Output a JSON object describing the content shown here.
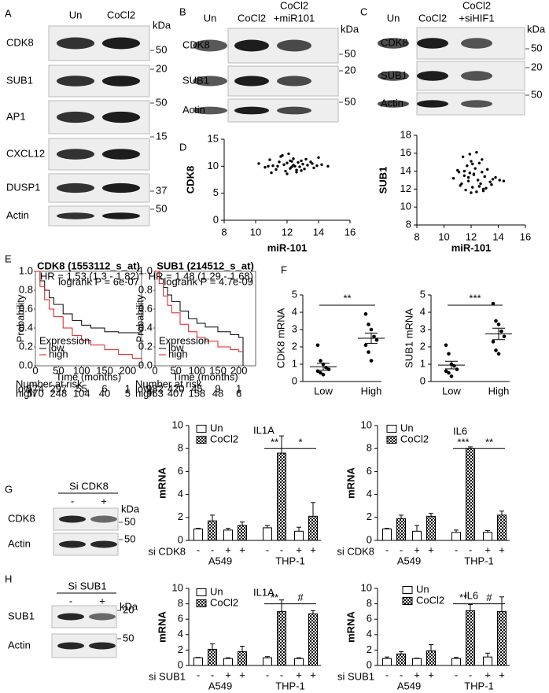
{
  "panel_A": {
    "label": "A",
    "lanes": [
      "Un",
      "CoCl2"
    ],
    "unit": "kDa",
    "rows": [
      {
        "name": "CDK8",
        "kda": 50
      },
      {
        "name": "SUB1",
        "kda": 20
      },
      {
        "name": "AP1",
        "kda": 50
      },
      {
        "name": "CXCL12",
        "kda": 15
      },
      {
        "name": "DUSP1",
        "kda": 37
      },
      {
        "name": "Actin",
        "kda": 50
      }
    ]
  },
  "panel_B": {
    "label": "B",
    "lanes": [
      [
        "Un"
      ],
      [
        "CoCl2"
      ],
      [
        "CoCl2",
        "+miR101"
      ]
    ],
    "unit": "kDa",
    "rows": [
      {
        "name": "CDK8",
        "kda": 50
      },
      {
        "name": "SUB1",
        "kda": 20
      },
      {
        "name": "Actin",
        "kda": 50
      }
    ]
  },
  "panel_C": {
    "label": "C",
    "lanes": [
      [
        "Un"
      ],
      [
        "CoCl2"
      ],
      [
        "CoCl2",
        "+siHIF1"
      ]
    ],
    "unit": "kDa",
    "rows": [
      {
        "name": "CDK8",
        "kda": 50
      },
      {
        "name": "SUB1",
        "kda": 20
      },
      {
        "name": "Actin",
        "kda": 50
      }
    ]
  },
  "panel_D": {
    "label": "D",
    "charts": [
      {
        "type": "scatter",
        "ylabel": "CDK8",
        "xlabel": "miR-101",
        "xlim": [
          8,
          16
        ],
        "xticks": [
          8,
          10,
          12,
          14,
          16
        ],
        "ylim": [
          0,
          15
        ],
        "yticks": [
          0,
          5,
          10,
          15
        ],
        "x": [
          10.2,
          10.6,
          10.9,
          11.1,
          11.3,
          11.5,
          11.6,
          11.8,
          11.9,
          12.0,
          12.1,
          12.2,
          12.3,
          12.4,
          12.5,
          12.6,
          12.7,
          12.8,
          12.9,
          13.0,
          13.1,
          13.3,
          13.5,
          13.7,
          13.9,
          14.2,
          14.6,
          11.0,
          11.7,
          12.2,
          12.6,
          13.2,
          12.0,
          12.4,
          11.4,
          12.9,
          13.6,
          10.8,
          14.0,
          12.3
        ],
        "values": [
          10.5,
          9.8,
          11.2,
          10.1,
          9.4,
          10.8,
          11.8,
          10.3,
          9.1,
          10.6,
          12.3,
          9.6,
          10.9,
          11.4,
          10.0,
          8.9,
          10.7,
          9.9,
          11.0,
          10.4,
          9.5,
          10.2,
          10.8,
          9.7,
          10.1,
          10.3,
          10.0,
          8.8,
          12.0,
          11.0,
          9.3,
          11.3,
          8.6,
          10.2,
          10.0,
          9.2,
          10.5,
          10.0,
          11.6,
          9.9
        ]
      },
      {
        "type": "scatter",
        "ylabel": "SUB1",
        "xlabel": "miR-101",
        "xlim": [
          8,
          16
        ],
        "xticks": [
          8,
          10,
          12,
          14,
          16
        ],
        "ylim": [
          8,
          18
        ],
        "yticks": [
          8,
          10,
          12,
          14,
          16,
          18
        ],
        "x": [
          10.7,
          11.0,
          11.2,
          11.4,
          11.5,
          11.6,
          11.7,
          11.8,
          11.9,
          12.0,
          12.1,
          12.2,
          12.3,
          12.4,
          12.5,
          12.6,
          12.7,
          12.8,
          12.9,
          13.0,
          13.2,
          13.4,
          13.6,
          13.8,
          14.1,
          14.4,
          11.3,
          11.9,
          12.2,
          12.6,
          12.0,
          11.5,
          12.8,
          13.1,
          12.4,
          11.8,
          12.1,
          13.5,
          11.1,
          12.9
        ],
        "values": [
          13.2,
          14.1,
          12.4,
          15.6,
          13.5,
          11.9,
          14.6,
          12.9,
          13.8,
          15.1,
          12.2,
          13.6,
          14.3,
          11.7,
          13.0,
          14.9,
          12.6,
          13.9,
          12.0,
          13.4,
          14.2,
          12.8,
          13.1,
          13.3,
          13.0,
          12.9,
          12.6,
          15.9,
          13.7,
          12.3,
          11.6,
          14.0,
          15.3,
          12.1,
          16.1,
          13.3,
          14.8,
          12.5,
          13.9,
          11.8
        ]
      }
    ]
  },
  "panel_E": {
    "label": "E",
    "charts": [
      {
        "type": "line",
        "title": "CDK8 (1553112_s_at)",
        "hr": "HR = 1.53 (1.3 - 1.82)",
        "logrank": "logrank P = 6e-07",
        "ylabel": "Probability",
        "xlabel": "Time (months)",
        "xlim": [
          0,
          230
        ],
        "xticks": [
          0,
          50,
          100,
          150,
          200
        ],
        "ylim": [
          0,
          1
        ],
        "yticks": [
          {
            "value": 0,
            "label": "0.0"
          },
          0.2,
          0.4,
          0.6,
          0.8,
          {
            "value": 1,
            "label": "1.0"
          }
        ],
        "legend_title": "Expression",
        "x": [
          0,
          10,
          20,
          30,
          40,
          60,
          80,
          100,
          120,
          150,
          180,
          210,
          230
        ],
        "series": [
          {
            "name": "low",
            "color": "#000000",
            "values": [
              1,
              0.9,
              0.8,
              0.72,
              0.65,
              0.55,
              0.48,
              0.43,
              0.4,
              0.36,
              0.35,
              0.35,
              0.35
            ]
          },
          {
            "name": "high",
            "color": "#e31a1c",
            "values": [
              1,
              0.84,
              0.7,
              0.6,
              0.52,
              0.4,
              0.32,
              0.27,
              0.22,
              0.17,
              0.12,
              0.08,
              0.06
            ]
          }
        ],
        "risk_title": "Number at risk",
        "risk": [
          {
            "name": "low",
            "values": [
              574,
              297,
              55,
              6,
              1
            ]
          },
          {
            "name": "high",
            "values": [
              570,
              248,
              104,
              40,
              5
            ]
          }
        ]
      },
      {
        "type": "line",
        "title": "SUB1 (214512_s_at)",
        "hr": "HR = 1.48 (1.29 - 1.68)",
        "logrank": "logrank P = 4.7e-09",
        "ylabel": "Probability",
        "xlabel": "Time (months)",
        "xlim": [
          0,
          240
        ],
        "xticks": [
          0,
          50,
          100,
          150,
          200
        ],
        "ylim": [
          0,
          1
        ],
        "yticks": [
          {
            "value": 0,
            "label": "0.0"
          },
          0.2,
          0.4,
          0.6,
          0.8,
          {
            "value": 1,
            "label": "1.0"
          }
        ],
        "legend_title": "Expression",
        "x": [
          0,
          10,
          20,
          30,
          40,
          60,
          80,
          100,
          120,
          150,
          180,
          200,
          210
        ],
        "series": [
          {
            "name": "low",
            "color": "#000000",
            "values": [
              1,
              0.92,
              0.83,
              0.75,
              0.68,
              0.58,
              0.5,
              0.45,
              0.41,
              0.36,
              0.33,
              0.3,
              0
            ]
          },
          {
            "name": "high",
            "color": "#e31a1c",
            "values": [
              1,
              0.87,
              0.74,
              0.64,
              0.56,
              0.44,
              0.36,
              0.3,
              0.26,
              0.2,
              0.17,
              0.15,
              0.15
            ]
          }
        ],
        "risk_title": "Number at risk",
        "risk": [
          {
            "name": "low",
            "values": [
              982,
              420,
              45,
              9,
              1
            ]
          },
          {
            "name": "high",
            "values": [
              963,
              407,
              158,
              48,
              6
            ]
          }
        ]
      }
    ]
  },
  "panel_F": {
    "label": "F",
    "charts": [
      {
        "type": "dot",
        "ylabel": "CDK8 mRNA",
        "categories": [
          "Low",
          "High"
        ],
        "ylim": [
          0,
          5
        ],
        "yticks": [
          0,
          1,
          2,
          3,
          4,
          5
        ],
        "points": [
          [
            2.1,
            1.2,
            1.0,
            0.8,
            0.7,
            0.6,
            0.5,
            0.4
          ],
          [
            3.9,
            3.3,
            3.0,
            2.6,
            2.4,
            2.1,
            1.7,
            1.2
          ]
        ],
        "means": [
          0.85,
          2.5
        ],
        "sem": [
          0.2,
          0.3
        ],
        "annotation": "**"
      },
      {
        "type": "dot",
        "ylabel": "SUB1 mRNA",
        "categories": [
          "Low",
          "High"
        ],
        "ylim": [
          0,
          5
        ],
        "yticks": [
          0,
          1,
          2,
          3,
          4,
          5
        ],
        "points": [
          [
            2.1,
            1.6,
            1.0,
            0.9,
            0.7,
            0.6,
            0.5,
            0.3
          ],
          [
            4.5,
            3.5,
            3.3,
            2.9,
            2.6,
            2.3,
            1.8,
            1.6
          ]
        ],
        "means": [
          0.95,
          2.75
        ],
        "sem": [
          0.22,
          0.33
        ],
        "annotation": "***"
      }
    ]
  },
  "panel_G": {
    "label": "G",
    "blot": {
      "title": "Si CDK8",
      "lanes": [
        "-",
        "+"
      ],
      "unit": "kDa",
      "rows": [
        {
          "name": "CDK8",
          "kda": 50
        },
        {
          "name": "Actin",
          "kda": 50
        }
      ]
    },
    "charts": [
      {
        "type": "bar",
        "title": "IL1A",
        "ylabel": "mRNA",
        "ylim": [
          0,
          10
        ],
        "yticks": [
          0,
          2,
          4,
          6,
          8,
          10
        ],
        "treatment": "si CDK8",
        "signs": [
          "-",
          "-",
          "+",
          "+",
          "-",
          "-",
          "+",
          "+"
        ],
        "groups": [
          "A549",
          "THP-1"
        ],
        "series": [
          {
            "name": "Un",
            "color": "#ffffff",
            "values": [
              1.0,
              0.9,
              1.1,
              0.8
            ],
            "errors": [
              0.05,
              0.15,
              0.2,
              0.35
            ]
          },
          {
            "name": "CoCl2",
            "color": "#000000",
            "values": [
              1.7,
              1.3,
              7.6,
              2.1
            ],
            "errors": [
              0.5,
              0.3,
              1.5,
              1.2
            ]
          }
        ],
        "annotations": [
          "**",
          "*"
        ]
      },
      {
        "type": "bar",
        "title": "IL6",
        "ylabel": "mRNA",
        "ylim": [
          0,
          10
        ],
        "yticks": [
          0,
          2,
          4,
          6,
          8,
          10
        ],
        "treatment": "si CDK8",
        "signs": [
          "-",
          "-",
          "+",
          "+",
          "-",
          "-",
          "+",
          "+"
        ],
        "groups": [
          "A549",
          "THP-1"
        ],
        "series": [
          {
            "name": "Un",
            "color": "#ffffff",
            "values": [
              1.0,
              0.8,
              0.7,
              0.7
            ],
            "errors": [
              0.05,
              0.5,
              0.2,
              0.15
            ]
          },
          {
            "name": "CoCl2",
            "color": "#000000",
            "values": [
              1.9,
              2.1,
              8.0,
              2.2
            ],
            "errors": [
              0.3,
              0.25,
              0.15,
              0.35
            ]
          }
        ],
        "annotations": [
          "***",
          "**"
        ]
      }
    ]
  },
  "panel_H": {
    "label": "H",
    "blot": {
      "title": "Si SUB1",
      "lanes": [
        "-",
        "+"
      ],
      "unit": "kDa",
      "rows": [
        {
          "name": "SUB1",
          "kda": 20
        },
        {
          "name": "Actin",
          "kda": 50
        }
      ]
    },
    "charts": [
      {
        "type": "bar",
        "title": "IL1A",
        "ylabel": "mRNA",
        "ylim": [
          0,
          10
        ],
        "yticks": [
          0,
          2,
          4,
          6,
          8,
          10
        ],
        "treatment": "si SUB1",
        "signs": [
          "-",
          "-",
          "+",
          "+",
          "-",
          "-",
          "+",
          "+"
        ],
        "groups": [
          "A549",
          "THP-1"
        ],
        "series": [
          {
            "name": "Un",
            "color": "#ffffff",
            "values": [
              1.0,
              0.9,
              1.0,
              0.9
            ],
            "errors": [
              0.05,
              0.1,
              0.15,
              0.1
            ]
          },
          {
            "name": "CoCl2",
            "color": "#000000",
            "values": [
              2.1,
              1.8,
              7.0,
              6.7
            ],
            "errors": [
              0.7,
              0.7,
              1.5,
              0.4
            ]
          }
        ],
        "annotations": [
          "**",
          "#"
        ]
      },
      {
        "type": "bar",
        "title": "IL6",
        "ylabel": "mRNA",
        "ylim": [
          0,
          10
        ],
        "yticks": [
          0,
          2,
          4,
          6,
          8,
          10
        ],
        "treatment": "si SUB1",
        "signs": [
          "-",
          "-",
          "+",
          "+",
          "-",
          "-",
          "+",
          "+"
        ],
        "groups": [
          "A549",
          "THP-1"
        ],
        "series": [
          {
            "name": "Un",
            "color": "#ffffff",
            "values": [
              0.9,
              0.9,
              0.9,
              1.1
            ],
            "errors": [
              0.2,
              0.05,
              0.15,
              0.5
            ]
          },
          {
            "name": "CoCl2",
            "color": "#000000",
            "values": [
              1.5,
              1.9,
              7.1,
              7.0
            ],
            "errors": [
              0.3,
              0.8,
              0.8,
              1.9
            ]
          }
        ],
        "annotations": [
          "**",
          "#"
        ]
      }
    ]
  }
}
